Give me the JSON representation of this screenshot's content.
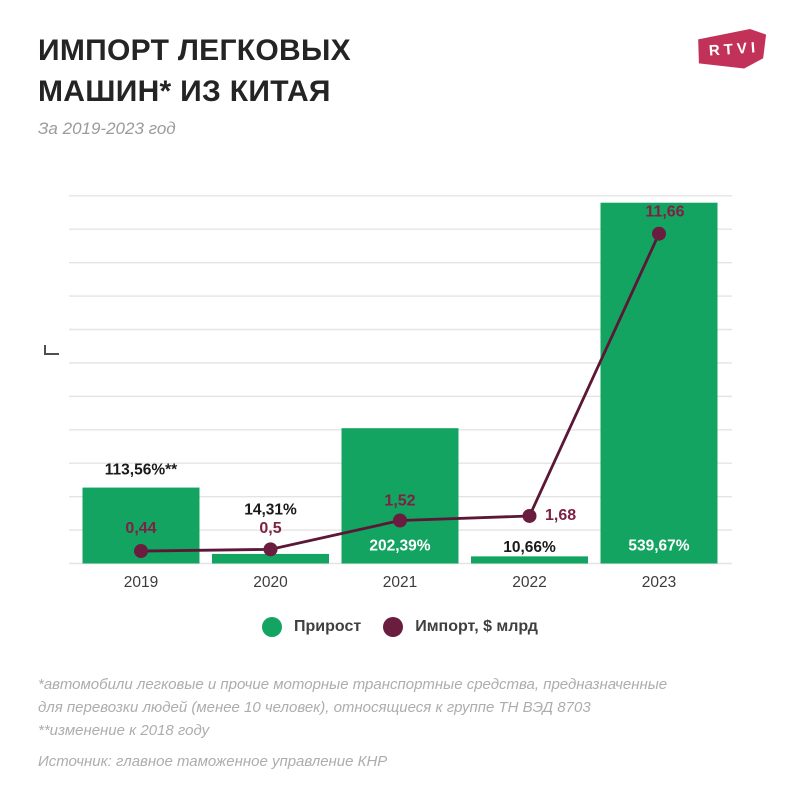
{
  "header": {
    "title_line1": "ИМПОРТ ЛЕГКОВЫХ",
    "title_line2": "МАШИН* ИЗ КИТАЯ",
    "subtitle": "За 2019-2023 год",
    "logo_text": "RTVI",
    "logo_color": "#C23158"
  },
  "chart_data": {
    "type": "bar+line",
    "categories": [
      "2019",
      "2020",
      "2021",
      "2022",
      "2023"
    ],
    "series": [
      {
        "name": "Прирост",
        "type": "bar",
        "unit": "%",
        "values": [
          113.56,
          14.31,
          202.39,
          10.66,
          539.67
        ],
        "labels": [
          "113,56%**",
          "14,31%",
          "202,39%",
          "10,66%",
          "539,67%"
        ],
        "color": "#14A462"
      },
      {
        "name": "Импорт, $ млрд",
        "type": "line",
        "unit": "$ млрд",
        "values": [
          0.44,
          0.5,
          1.52,
          1.68,
          11.66
        ],
        "labels": [
          "0,44",
          "0,5",
          "1,52",
          "1,68",
          "11,66"
        ],
        "color": "#5C1736",
        "dot_color": "#6B1D3F",
        "label_color": "#7C2245"
      }
    ],
    "bar_axis_max_pct": 550,
    "line_axis_max": 13,
    "grid_line_count": 12,
    "grid_color": "#E4E4E4",
    "grid_on": true,
    "year_label_color": "#3C3C3C",
    "legend_position": "bottom",
    "legend": [
      "Прирост",
      "Импорт, $ млрд"
    ]
  },
  "footnotes": {
    "line1": "*автомобили легковые и прочие моторные транспортные средства, предназначенные",
    "line2": "для перевозки людей (менее 10 человек), относящиеся к группе ТН ВЭД 8703",
    "line3": "**изменение к 2018 году"
  },
  "source": "Источник: главное таможенное управление КНР"
}
